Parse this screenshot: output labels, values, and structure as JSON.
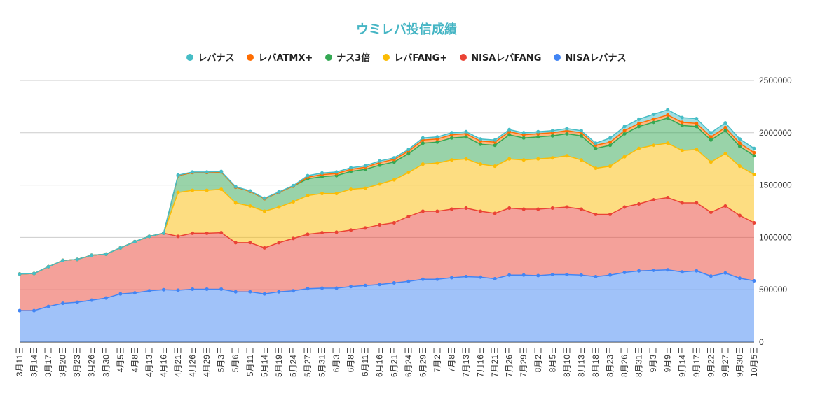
{
  "chart_data": {
    "type": "area",
    "stacked": true,
    "title": "ウミレバ投信成績",
    "legend_position": "top",
    "grid": true,
    "ylim": [
      0,
      2500000
    ],
    "yticks": [
      "0",
      "500000",
      "1000000",
      "1500000",
      "2000000",
      "2500000"
    ],
    "categories": [
      "3月11日",
      "3月14日",
      "3月17日",
      "3月20日",
      "3月23日",
      "3月26日",
      "3月30日",
      "4月5日",
      "4月8日",
      "4月13日",
      "4月16日",
      "4月21日",
      "4月26日",
      "4月29日",
      "5月3日",
      "5月6日",
      "5月11日",
      "5月14日",
      "5月19日",
      "5月24日",
      "5月27日",
      "5月31日",
      "6月3日",
      "6月8日",
      "6月11日",
      "6月16日",
      "6月21日",
      "6月24日",
      "6月29日",
      "7月2日",
      "7月8日",
      "7月13日",
      "7月16日",
      "7月21日",
      "7月26日",
      "7月29日",
      "8月2日",
      "8月5日",
      "8月10日",
      "8月13日",
      "8月18日",
      "8月23日",
      "8月26日",
      "8月31日",
      "9月3日",
      "9月9日",
      "9月14日",
      "9月17日",
      "9月22日",
      "9月27日",
      "9月30日",
      "10月5日"
    ],
    "series": [
      {
        "name": "NISAレバナス",
        "color": "#4285f4",
        "values": [
          300000,
          300000,
          340000,
          370000,
          380000,
          400000,
          420000,
          460000,
          470000,
          490000,
          500000,
          495000,
          505000,
          505000,
          505000,
          480000,
          480000,
          460000,
          480000,
          490000,
          510000,
          515000,
          515000,
          530000,
          540000,
          550000,
          565000,
          580000,
          600000,
          600000,
          615000,
          625000,
          620000,
          605000,
          640000,
          640000,
          635000,
          645000,
          645000,
          640000,
          625000,
          640000,
          665000,
          680000,
          685000,
          690000,
          670000,
          680000,
          630000,
          660000,
          610000,
          585000
        ]
      },
      {
        "name": "NISAレバFANG",
        "color": "#ea4335",
        "values": [
          350000,
          355000,
          380000,
          410000,
          410000,
          430000,
          420000,
          440000,
          490000,
          520000,
          540000,
          515000,
          535000,
          535000,
          540000,
          470000,
          470000,
          440000,
          470000,
          500000,
          520000,
          530000,
          535000,
          540000,
          550000,
          570000,
          575000,
          620000,
          650000,
          650000,
          655000,
          655000,
          630000,
          625000,
          640000,
          630000,
          635000,
          635000,
          645000,
          630000,
          595000,
          580000,
          625000,
          640000,
          675000,
          690000,
          660000,
          650000,
          610000,
          640000,
          600000,
          555000
        ]
      },
      {
        "name": "レバFANG+",
        "color": "#fbbc04",
        "values": [
          0,
          0,
          0,
          0,
          0,
          0,
          0,
          0,
          0,
          0,
          0,
          420000,
          410000,
          410000,
          415000,
          380000,
          350000,
          350000,
          340000,
          350000,
          370000,
          375000,
          370000,
          390000,
          380000,
          390000,
          410000,
          420000,
          450000,
          460000,
          470000,
          470000,
          450000,
          450000,
          470000,
          470000,
          480000,
          480000,
          490000,
          470000,
          440000,
          460000,
          480000,
          530000,
          520000,
          520000,
          500000,
          510000,
          480000,
          500000,
          470000,
          460000
        ]
      },
      {
        "name": "ナス3倍",
        "color": "#34a853",
        "values": [
          0,
          0,
          0,
          0,
          0,
          0,
          0,
          0,
          0,
          0,
          0,
          160000,
          170000,
          170000,
          165000,
          150000,
          140000,
          120000,
          140000,
          150000,
          160000,
          160000,
          170000,
          170000,
          180000,
          180000,
          170000,
          180000,
          200000,
          200000,
          210000,
          210000,
          190000,
          200000,
          230000,
          210000,
          210000,
          210000,
          210000,
          230000,
          190000,
          200000,
          220000,
          210000,
          220000,
          240000,
          240000,
          220000,
          210000,
          220000,
          190000,
          180000
        ]
      },
      {
        "name": "レバATMX+",
        "color": "#ff6d01",
        "values": [
          0,
          0,
          0,
          0,
          0,
          0,
          0,
          0,
          0,
          0,
          0,
          0,
          0,
          0,
          0,
          0,
          0,
          0,
          0,
          0,
          15000,
          20000,
          20000,
          20000,
          20000,
          25000,
          25000,
          25000,
          30000,
          30000,
          30000,
          30000,
          30000,
          30000,
          30000,
          30000,
          30000,
          30000,
          30000,
          30000,
          30000,
          30000,
          30000,
          30000,
          30000,
          30000,
          30000,
          30000,
          30000,
          30000,
          30000,
          30000
        ]
      },
      {
        "name": "レバナス",
        "color": "#46bdc6",
        "values": [
          0,
          0,
          0,
          0,
          0,
          0,
          0,
          0,
          0,
          0,
          0,
          5000,
          5000,
          5000,
          5000,
          5000,
          5000,
          5000,
          5000,
          5000,
          15000,
          15000,
          15000,
          15000,
          15000,
          15000,
          15000,
          15000,
          20000,
          20000,
          20000,
          20000,
          20000,
          20000,
          20000,
          20000,
          20000,
          20000,
          20000,
          20000,
          20000,
          40000,
          40000,
          40000,
          45000,
          50000,
          45000,
          45000,
          40000,
          45000,
          40000,
          40000
        ]
      }
    ]
  }
}
